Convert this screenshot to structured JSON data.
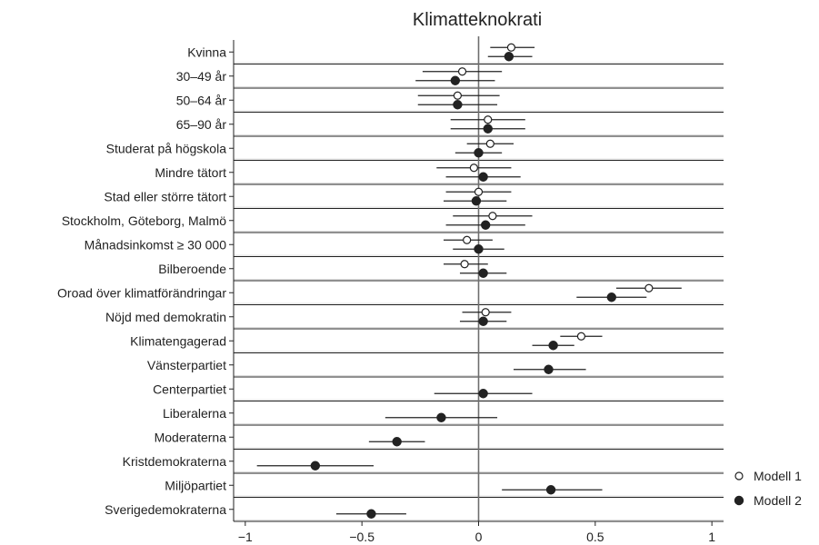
{
  "chart_data": {
    "type": "scatter",
    "subtype": "coefficient-plot",
    "title": "Klimatteknokrati",
    "xlim": [
      -1.05,
      1.05
    ],
    "x_ticks": [
      {
        "value": -1,
        "label": "−1"
      },
      {
        "value": -0.5,
        "label": "−0.5"
      },
      {
        "value": 0,
        "label": "0"
      },
      {
        "value": 0.5,
        "label": "0.5"
      },
      {
        "value": 1,
        "label": "1"
      }
    ],
    "reference_line": 0,
    "legend": {
      "position": "bottom-right",
      "entries": [
        {
          "name": "Modell 1",
          "marker": "hollow-circle"
        },
        {
          "name": "Modell 2",
          "marker": "filled-circle"
        }
      ]
    },
    "categories": [
      "Kvinna",
      "30–49 år",
      "50–64 år",
      "65–90 år",
      "Studerat på högskola",
      "Mindre tätort",
      "Stad eller större tätort",
      "Stockholm, Göteborg, Malmö",
      "Månadsinkomst ≥ 30 000",
      "Bilberoende",
      "Oroad över klimatförändringar",
      "Nöjd med demokratin",
      "Klimatengagerad",
      "Vänsterpartiet",
      "Centerpartiet",
      "Liberalerna",
      "Moderaterna",
      "Kristdemokraterna",
      "Miljöpartiet",
      "Sverigedemokraterna"
    ],
    "series": [
      {
        "name": "Modell 1",
        "estimates": [
          0.14,
          -0.07,
          -0.09,
          0.04,
          0.05,
          -0.02,
          0.0,
          0.06,
          -0.05,
          -0.06,
          0.73,
          0.03,
          0.44,
          null,
          null,
          null,
          null,
          null,
          null,
          null
        ],
        "ci_low": [
          0.05,
          -0.24,
          -0.26,
          -0.12,
          -0.05,
          -0.18,
          -0.14,
          -0.11,
          -0.15,
          -0.15,
          0.59,
          -0.07,
          0.35,
          null,
          null,
          null,
          null,
          null,
          null,
          null
        ],
        "ci_high": [
          0.24,
          0.1,
          0.09,
          0.2,
          0.15,
          0.14,
          0.14,
          0.23,
          0.06,
          0.04,
          0.87,
          0.14,
          0.53,
          null,
          null,
          null,
          null,
          null,
          null,
          null
        ]
      },
      {
        "name": "Modell 2",
        "estimates": [
          0.13,
          -0.1,
          -0.09,
          0.04,
          0.0,
          0.02,
          -0.01,
          0.03,
          0.0,
          0.02,
          0.57,
          0.02,
          0.32,
          0.3,
          0.02,
          -0.16,
          -0.35,
          -0.7,
          0.31,
          -0.46
        ],
        "ci_low": [
          0.04,
          -0.27,
          -0.26,
          -0.12,
          -0.1,
          -0.14,
          -0.15,
          -0.14,
          -0.11,
          -0.08,
          0.42,
          -0.08,
          0.23,
          0.15,
          -0.19,
          -0.4,
          -0.47,
          -0.95,
          0.1,
          -0.61
        ],
        "ci_high": [
          0.23,
          0.07,
          0.08,
          0.2,
          0.1,
          0.18,
          0.12,
          0.2,
          0.11,
          0.12,
          0.72,
          0.12,
          0.41,
          0.46,
          0.23,
          0.08,
          -0.23,
          -0.45,
          0.53,
          -0.31
        ]
      }
    ]
  }
}
